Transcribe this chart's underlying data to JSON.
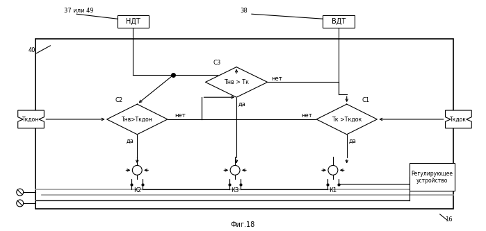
{
  "title": "Фиг.18",
  "label_16": "16",
  "label_37_49": "37 или 49",
  "label_38": "38",
  "label_40": "40",
  "box_NDT": "НДТ",
  "box_VDT": "ВДТ",
  "box_Tkdon": "Ткдон",
  "box_Tkdok": "Ткдок",
  "box_reg": "Регулирующее\nустройство",
  "diamond_C2": "Тнв>Ткдон",
  "diamond_C3": "Тнв > Тк",
  "diamond_C1": "Тк >Ткдок",
  "label_C1": "С1",
  "label_C2": "С2",
  "label_C3": "С3",
  "label_K1": "К1",
  "label_K2": "К2",
  "label_K3": "К3",
  "yes": "да",
  "no": "нет",
  "bg_color": "#ffffff"
}
